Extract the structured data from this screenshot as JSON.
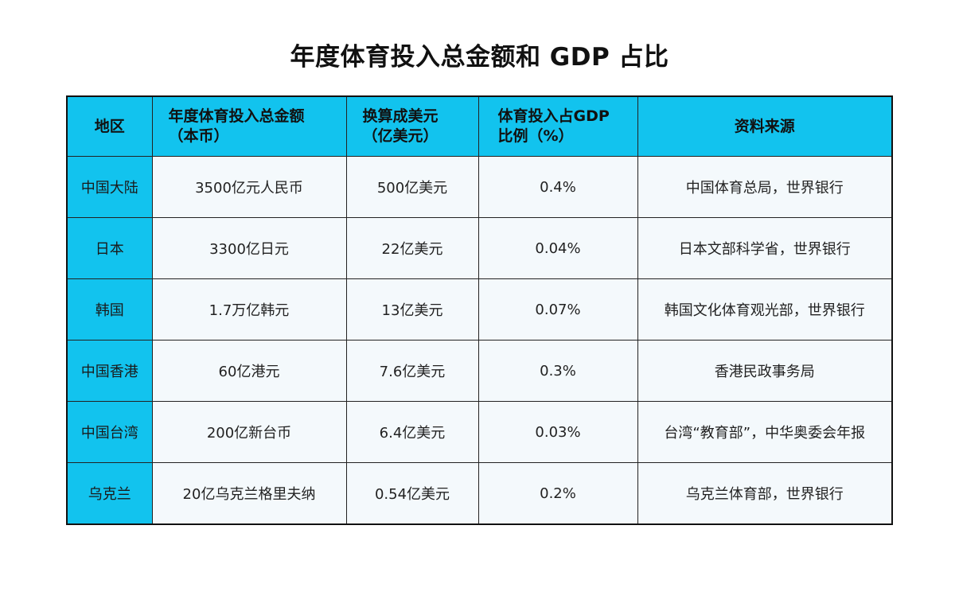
{
  "title": "年度体育投入总金额和 GDP 占比",
  "table": {
    "headers": [
      "地区",
      "年度体育投入总金额\n（本币）",
      "换算成美元\n（亿美元）",
      "体育投入占GDP\n比例（%）",
      "资料来源"
    ],
    "rows": [
      [
        "中国大陆",
        "3500亿元人民币",
        "500亿美元",
        "0.4%",
        "中国体育总局，世界银行"
      ],
      [
        "日本",
        "3300亿日元",
        "22亿美元",
        "0.04%",
        "日本文部科学省，世界银行"
      ],
      [
        "韩国",
        "1.7万亿韩元",
        "13亿美元",
        "0.07%",
        "韩国文化体育观光部，世界银行"
      ],
      [
        "中国香港",
        "60亿港元",
        "7.6亿美元",
        "0.3%",
        "香港民政事务局"
      ],
      [
        "中国台湾",
        "200亿新台币",
        "6.4亿美元",
        "0.03%",
        "台湾“教育部”，中华奥委会年报"
      ],
      [
        "乌克兰",
        "20亿乌克兰格里夫纳",
        "0.54亿美元",
        "0.2%",
        "乌克兰体育部，世界银行"
      ]
    ]
  },
  "colors": {
    "header_bg": "#12c3ee",
    "cell_bg": "#f4f9fc",
    "border": "#222222"
  }
}
